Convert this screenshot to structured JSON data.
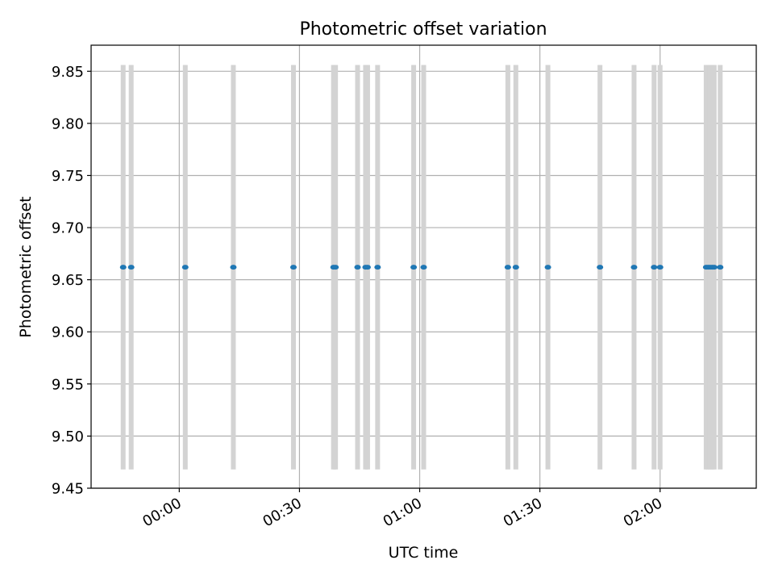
{
  "chart_data": {
    "type": "scatter",
    "title": "Photometric offset variation",
    "xlabel": "UTC time",
    "ylabel": "Photometric offset",
    "x_ticks": [
      "00:00",
      "00:30",
      "01:00",
      "01:30",
      "02:00"
    ],
    "y_ticks": [
      "9.45",
      "9.50",
      "9.55",
      "9.60",
      "9.65",
      "9.70",
      "9.75",
      "9.80",
      "9.85"
    ],
    "xlim": [
      "23:38",
      "02:24"
    ],
    "ylim": [
      9.45,
      9.875
    ],
    "grid": true,
    "band_range": [
      9.468,
      9.856
    ],
    "points": [
      {
        "x": "23:46:00",
        "y": 9.662
      },
      {
        "x": "23:48:00",
        "y": 9.662
      },
      {
        "x": "00:01:30",
        "y": 9.662
      },
      {
        "x": "00:13:30",
        "y": 9.662
      },
      {
        "x": "00:28:30",
        "y": 9.662
      },
      {
        "x": "00:38:30",
        "y": 9.662
      },
      {
        "x": "00:39:00",
        "y": 9.662
      },
      {
        "x": "00:44:30",
        "y": 9.662
      },
      {
        "x": "00:46:30",
        "y": 9.662
      },
      {
        "x": "00:47:00",
        "y": 9.662
      },
      {
        "x": "00:49:30",
        "y": 9.662
      },
      {
        "x": "00:58:30",
        "y": 9.662
      },
      {
        "x": "01:01:00",
        "y": 9.662
      },
      {
        "x": "01:22:00",
        "y": 9.662
      },
      {
        "x": "01:24:00",
        "y": 9.662
      },
      {
        "x": "01:32:00",
        "y": 9.662
      },
      {
        "x": "01:45:00",
        "y": 9.662
      },
      {
        "x": "01:53:30",
        "y": 9.662
      },
      {
        "x": "01:58:30",
        "y": 9.662
      },
      {
        "x": "02:00:00",
        "y": 9.662
      },
      {
        "x": "02:11:30",
        "y": 9.662
      },
      {
        "x": "02:12:00",
        "y": 9.662
      },
      {
        "x": "02:12:30",
        "y": 9.662
      },
      {
        "x": "02:13:00",
        "y": 9.662
      },
      {
        "x": "02:13:30",
        "y": 9.662
      },
      {
        "x": "02:15:00",
        "y": 9.662
      }
    ],
    "band_color": "#d3d3d3",
    "point_color": "#1f77b4",
    "grid_color": "#b0b0b0"
  }
}
